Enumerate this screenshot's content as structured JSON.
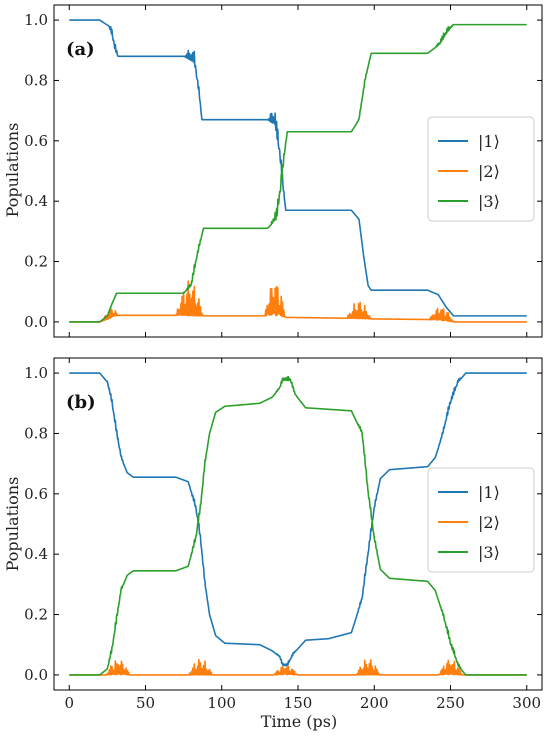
{
  "figure": {
    "xlabel": "Time (ps)",
    "ylabel": "Populations"
  },
  "chart_data": [
    {
      "type": "line",
      "panel_label": "(a)",
      "xlim": [
        -10,
        310
      ],
      "ylim": [
        -0.05,
        1.05
      ],
      "xticks": [
        0,
        50,
        100,
        150,
        200,
        250,
        300
      ],
      "yticks": [
        0.0,
        0.2,
        0.4,
        0.6,
        0.8,
        1.0
      ],
      "ytick_labels": [
        "0.0",
        "0.2",
        "0.4",
        "0.6",
        "0.8",
        "1.0"
      ],
      "show_xtick_labels": false,
      "legend": "center-right",
      "series": [
        {
          "name": "|1⟩",
          "color": "#1f77b4",
          "points": [
            [
              0,
              1.0
            ],
            [
              20,
              1.0
            ],
            [
              26,
              0.98
            ],
            [
              28,
              0.95
            ],
            [
              30,
              0.9
            ],
            [
              32,
              0.88
            ],
            [
              75,
              0.88
            ],
            [
              82,
              0.86
            ],
            [
              85,
              0.76
            ],
            [
              87,
              0.67
            ],
            [
              130,
              0.67
            ],
            [
              135,
              0.65
            ],
            [
              138,
              0.55
            ],
            [
              140,
              0.45
            ],
            [
              142,
              0.37
            ],
            [
              185,
              0.37
            ],
            [
              190,
              0.34
            ],
            [
              193,
              0.22
            ],
            [
              196,
              0.12
            ],
            [
              198,
              0.105
            ],
            [
              235,
              0.105
            ],
            [
              242,
              0.09
            ],
            [
              247,
              0.05
            ],
            [
              252,
              0.02
            ],
            [
              300,
              0.02
            ]
          ],
          "oscillations": [
            [
              26,
              32,
              0.03
            ],
            [
              75,
              87,
              0.04
            ],
            [
              130,
              142,
              0.06
            ],
            [
              185,
              198,
              0.0
            ],
            [
              240,
              252,
              0.0
            ]
          ]
        },
        {
          "name": "|2⟩",
          "color": "#ff7f0e",
          "points": [
            [
              0,
              0.0
            ],
            [
              20,
              0.0
            ],
            [
              26,
              0.01
            ],
            [
              30,
              0.02
            ],
            [
              32,
              0.022
            ],
            [
              72,
              0.022
            ],
            [
              78,
              0.02
            ],
            [
              130,
              0.02
            ],
            [
              142,
              0.015
            ],
            [
              185,
              0.012
            ],
            [
              198,
              0.01
            ],
            [
              235,
              0.008
            ],
            [
              252,
              0.0
            ],
            [
              300,
              0.0
            ]
          ],
          "oscillations": [
            [
              22,
              32,
              0.035
            ],
            [
              70,
              88,
              0.12
            ],
            [
              128,
              142,
              0.13
            ],
            [
              182,
              198,
              0.06
            ],
            [
              236,
              252,
              0.05
            ]
          ]
        },
        {
          "name": "|3⟩",
          "color": "#2ca02c",
          "points": [
            [
              0,
              0.0
            ],
            [
              20,
              0.0
            ],
            [
              25,
              0.02
            ],
            [
              28,
              0.06
            ],
            [
              31,
              0.095
            ],
            [
              75,
              0.095
            ],
            [
              80,
              0.12
            ],
            [
              84,
              0.22
            ],
            [
              88,
              0.31
            ],
            [
              130,
              0.31
            ],
            [
              136,
              0.34
            ],
            [
              139,
              0.45
            ],
            [
              141,
              0.55
            ],
            [
              143,
              0.63
            ],
            [
              185,
              0.63
            ],
            [
              190,
              0.67
            ],
            [
              194,
              0.8
            ],
            [
              198,
              0.89
            ],
            [
              235,
              0.89
            ],
            [
              243,
              0.92
            ],
            [
              248,
              0.96
            ],
            [
              252,
              0.985
            ],
            [
              300,
              0.985
            ]
          ],
          "oscillations": [
            [
              76,
              88,
              0.02
            ],
            [
              132,
              143,
              0.05
            ],
            [
              188,
              198,
              0.01
            ],
            [
              240,
              252,
              0.02
            ]
          ]
        }
      ]
    },
    {
      "type": "line",
      "panel_label": "(b)",
      "xlim": [
        -10,
        310
      ],
      "ylim": [
        -0.05,
        1.05
      ],
      "xticks": [
        0,
        50,
        100,
        150,
        200,
        250,
        300
      ],
      "xtick_labels": [
        "0",
        "50",
        "100",
        "150",
        "200",
        "250",
        "300"
      ],
      "yticks": [
        0.0,
        0.2,
        0.4,
        0.6,
        0.8,
        1.0
      ],
      "ytick_labels": [
        "0.0",
        "0.2",
        "0.4",
        "0.6",
        "0.8",
        "1.0"
      ],
      "show_xtick_labels": true,
      "legend": "center-right",
      "series": [
        {
          "name": "|1⟩",
          "color": "#1f77b4",
          "points": [
            [
              0,
              1.0
            ],
            [
              20,
              1.0
            ],
            [
              25,
              0.97
            ],
            [
              28,
              0.9
            ],
            [
              31,
              0.8
            ],
            [
              34,
              0.72
            ],
            [
              38,
              0.67
            ],
            [
              42,
              0.655
            ],
            [
              70,
              0.655
            ],
            [
              78,
              0.64
            ],
            [
              83,
              0.55
            ],
            [
              86,
              0.45
            ],
            [
              89,
              0.3
            ],
            [
              92,
              0.2
            ],
            [
              96,
              0.13
            ],
            [
              102,
              0.105
            ],
            [
              125,
              0.1
            ],
            [
              133,
              0.08
            ],
            [
              138,
              0.06
            ],
            [
              140,
              0.03
            ],
            [
              143,
              0.03
            ],
            [
              147,
              0.07
            ],
            [
              155,
              0.115
            ],
            [
              170,
              0.12
            ],
            [
              185,
              0.14
            ],
            [
              192,
              0.25
            ],
            [
              196,
              0.4
            ],
            [
              200,
              0.55
            ],
            [
              204,
              0.65
            ],
            [
              210,
              0.68
            ],
            [
              235,
              0.69
            ],
            [
              240,
              0.72
            ],
            [
              245,
              0.8
            ],
            [
              250,
              0.9
            ],
            [
              255,
              0.97
            ],
            [
              260,
              1.0
            ],
            [
              300,
              1.0
            ]
          ],
          "oscillations": [
            [
              24,
              36,
              0.02
            ],
            [
              78,
              92,
              0.02
            ],
            [
              135,
              150,
              0.01
            ],
            [
              188,
              204,
              0.02
            ],
            [
              242,
              258,
              0.02
            ]
          ]
        },
        {
          "name": "|2⟩",
          "color": "#ff7f0e",
          "points": [
            [
              0,
              0.0
            ],
            [
              300,
              0.0
            ]
          ],
          "oscillations": [
            [
              24,
              40,
              0.055
            ],
            [
              78,
              94,
              0.055
            ],
            [
              134,
              150,
              0.035
            ],
            [
              188,
              204,
              0.055
            ],
            [
              242,
              258,
              0.055
            ]
          ]
        },
        {
          "name": "|3⟩",
          "color": "#2ca02c",
          "points": [
            [
              0,
              0.0
            ],
            [
              20,
              0.0
            ],
            [
              25,
              0.02
            ],
            [
              28,
              0.08
            ],
            [
              31,
              0.18
            ],
            [
              34,
              0.28
            ],
            [
              38,
              0.33
            ],
            [
              42,
              0.345
            ],
            [
              70,
              0.345
            ],
            [
              78,
              0.36
            ],
            [
              83,
              0.45
            ],
            [
              86,
              0.55
            ],
            [
              89,
              0.7
            ],
            [
              92,
              0.8
            ],
            [
              96,
              0.87
            ],
            [
              102,
              0.89
            ],
            [
              125,
              0.9
            ],
            [
              133,
              0.92
            ],
            [
              138,
              0.95
            ],
            [
              140,
              0.975
            ],
            [
              145,
              0.975
            ],
            [
              148,
              0.93
            ],
            [
              155,
              0.885
            ],
            [
              185,
              0.875
            ],
            [
              192,
              0.8
            ],
            [
              196,
              0.6
            ],
            [
              200,
              0.45
            ],
            [
              204,
              0.35
            ],
            [
              210,
              0.32
            ],
            [
              235,
              0.31
            ],
            [
              240,
              0.28
            ],
            [
              245,
              0.2
            ],
            [
              250,
              0.1
            ],
            [
              255,
              0.03
            ],
            [
              260,
              0.0
            ],
            [
              300,
              0.0
            ]
          ],
          "oscillations": [
            [
              24,
              36,
              0.02
            ],
            [
              78,
              92,
              0.02
            ],
            [
              135,
              150,
              0.015
            ],
            [
              188,
              204,
              0.02
            ],
            [
              242,
              258,
              0.02
            ]
          ]
        }
      ]
    }
  ]
}
